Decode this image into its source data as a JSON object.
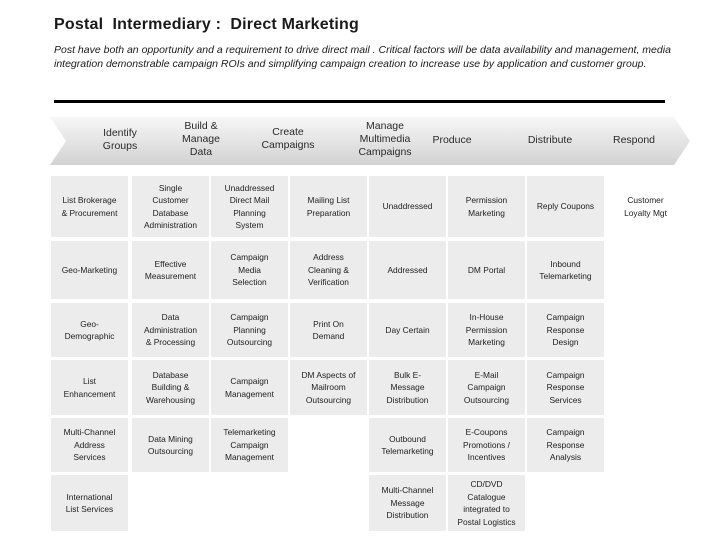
{
  "title": "Postal  Intermediary :  Direct Marketing",
  "subtitle": "Post have both an opportunity and a requirement to drive direct mail . Critical  factors will be data availability and management, media integration demonstrable campaign ROIs and simplifying campaign creation to increase use by application and customer group.",
  "stages": [
    "Identify\nGroups",
    "Build &\nManage\nData",
    "Create\nCampaigns",
    "Manage\nMultimedia\nCampaigns",
    "Produce",
    "Distribute",
    "Respond"
  ],
  "columns": [
    [
      "List Brokerage\n& Procurement",
      "Geo-Marketing",
      "Geo-\nDemographic",
      "List\nEnhancement",
      "Multi-Channel\nAddress\nServices",
      "International\nList Services"
    ],
    [
      "Single\nCustomer\nDatabase\nAdministration",
      "Effective\nMeasurement",
      "Data\nAdministration\n& Processing",
      "Database\nBuilding &\nWarehousing",
      "Data Mining\nOutsourcing"
    ],
    [
      "Unaddressed\nDirect Mail\nPlanning\nSystem",
      "Campaign\nMedia\nSelection",
      "Campaign\nPlanning\nOutsourcing",
      "Campaign\nManagement",
      "Telemarketing\nCampaign\nManagement"
    ],
    [
      "Mailing List\nPreparation",
      "Address\nCleaning &\nVerification",
      "Print On\nDemand",
      "DM Aspects of\nMailroom\nOutsourcing"
    ],
    [
      "Unaddressed",
      "Addressed",
      "Day Certain",
      "Bulk E-\nMessage\nDistribution",
      "Outbound\nTelemarketing",
      "Multi-Channel\nMessage\nDistribution"
    ],
    [
      "Permission\nMarketing",
      "DM Portal",
      "In-House\nPermission\nMarketing",
      "E-Mail\nCampaign\nOutsourcing",
      "E-Coupons\nPromotions /\nIncentives",
      "CD/DVD\nCatalogue\nintegrated to\nPostal Logistics"
    ],
    [
      "Reply Coupons",
      "Inbound\nTelemarketing",
      "Campaign\nResponse\nDesign",
      "Campaign\nResponse\nServices",
      "Campaign\nResponse\nAnalysis"
    ],
    [
      "Customer\nLoyalty Mgt"
    ]
  ],
  "colors": {
    "chevron_light": "#f5f5f5",
    "chevron_dark": "#d7d7d7",
    "cell_fill": "#ececec",
    "rule": "#000000"
  }
}
